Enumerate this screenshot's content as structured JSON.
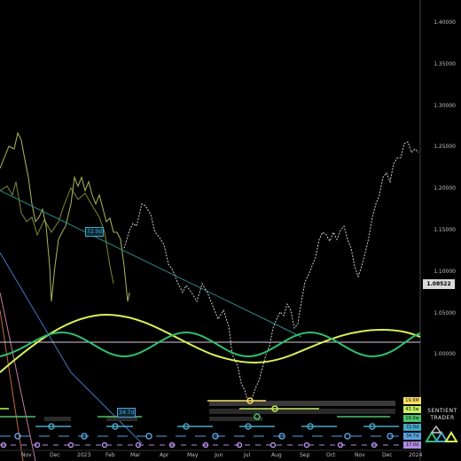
{
  "y_axis": {
    "ticks": [
      "1.40000",
      "1.35000",
      "1.30000",
      "1.25000",
      "1.20000",
      "1.15000",
      "1.10000",
      "1.05000",
      "1.00000"
    ],
    "current_price": "1.08522"
  },
  "x_axis": {
    "ticks": [
      "Nov",
      "Dec",
      "2023",
      "Feb",
      "Mar",
      "Apr",
      "May",
      "Jun",
      "Jul",
      "Aug",
      "Sep",
      "Oct",
      "Nov",
      "Dec",
      "2024"
    ]
  },
  "cycle_labels": {
    "mid_left": "72.0d",
    "bottom": "34.7d"
  },
  "cycle_badges": [
    {
      "text": "19.6M",
      "color": "#ffe066"
    },
    {
      "text": "43.3w",
      "color": "#c8f062"
    },
    {
      "text": "19.0w",
      "color": "#4cc46a"
    },
    {
      "text": "72.0d",
      "color": "#46a7c7"
    },
    {
      "text": "34.7d",
      "color": "#5aa0e0"
    },
    {
      "text": "17.0d",
      "color": "#b08ce0"
    }
  ],
  "branding": {
    "word1": "SENTIENT",
    "word2": "TRADER"
  },
  "colors": {
    "background": "#000000",
    "price_line": "#cfcfcf",
    "cycle_yellow": "#d9f25a",
    "cycle_green": "#2fbf6f",
    "trend_line": "#2a8c8c",
    "horizontal_line": "#e0c8e6",
    "badge_bg": "#d9d9d9"
  }
}
